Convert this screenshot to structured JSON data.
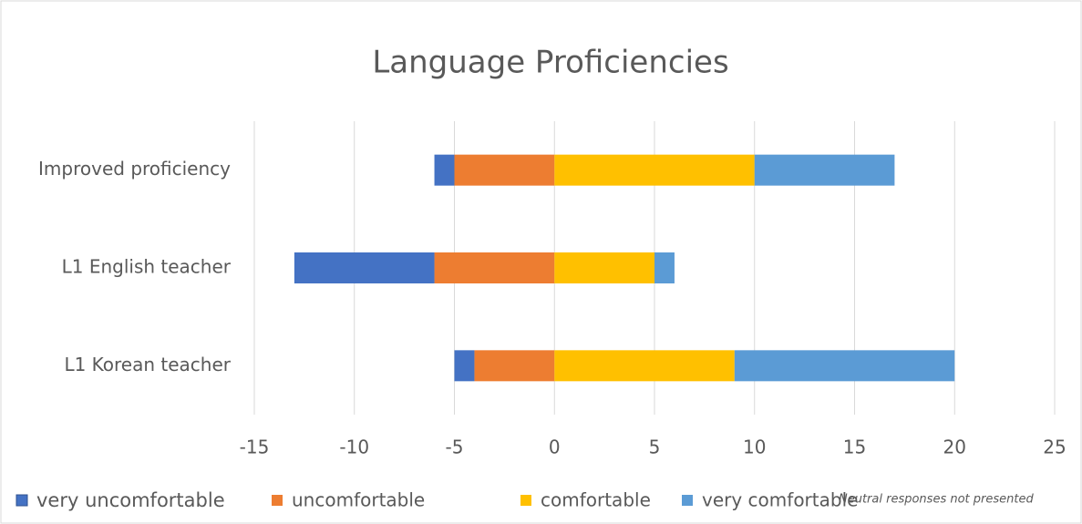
{
  "chart_data": {
    "type": "bar",
    "orientation": "horizontal",
    "title": "Language Proficiencies",
    "categories": [
      "Improved proficiency",
      "L1 English teacher",
      "L1 Korean teacher"
    ],
    "series": [
      {
        "name": "very uncomfortable",
        "color": "#4472c4",
        "values": [
          -1,
          -7,
          -1
        ]
      },
      {
        "name": "uncomfortable",
        "color": "#ed7d31",
        "values": [
          -5,
          -6,
          -4
        ]
      },
      {
        "name": "comfortable",
        "color": "#ffc000",
        "values": [
          10,
          5,
          9
        ]
      },
      {
        "name": "very comfortable",
        "color": "#5b9bd5",
        "values": [
          7,
          1,
          11
        ]
      }
    ],
    "xlim": [
      -15,
      25
    ],
    "xticks": [
      -15,
      -10,
      -5,
      0,
      5,
      10,
      15,
      20,
      25
    ],
    "grid": true,
    "legend": "bottom",
    "annotation": "Neutral responses not presented"
  }
}
